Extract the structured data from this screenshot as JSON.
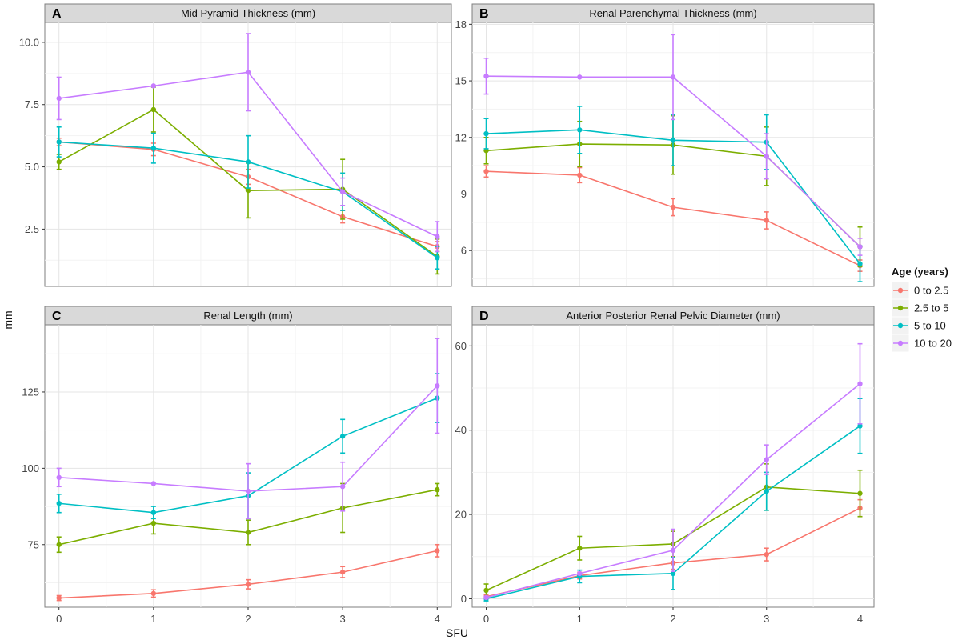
{
  "figure": {
    "xlabel": "SFU",
    "ylabel": "mm"
  },
  "legend": {
    "title": "Age (years)",
    "placement": "right",
    "items": [
      {
        "label": "0 to 2.5",
        "color": "#F8766D"
      },
      {
        "label": "2.5 to 5",
        "color": "#7CAE00"
      },
      {
        "label": "5 to 10",
        "color": "#00BFC4"
      },
      {
        "label": "10 to 20",
        "color": "#C77CFF"
      }
    ]
  },
  "chart_data": [
    {
      "panel_letter": "A",
      "title": "Mid Pyramid Thickness (mm)",
      "type": "line",
      "x": [
        0,
        1,
        2,
        3,
        4
      ],
      "xlim": [
        -0.15,
        4.15
      ],
      "ylim": [
        0.2,
        10.8
      ],
      "yticks": [
        2.5,
        5.0,
        7.5,
        10.0
      ],
      "ytick_labels": [
        "2.5",
        "5.0",
        "7.5",
        "10.0"
      ],
      "xtick_labels": [
        "0",
        "1",
        "2",
        "3",
        "4"
      ],
      "series": [
        {
          "name": "0 to 2.5",
          "values": [
            6.0,
            5.7,
            4.6,
            3.0,
            1.8
          ],
          "error": [
            0.15,
            0.25,
            0.3,
            0.25,
            0.2
          ]
        },
        {
          "name": "2.5 to 5",
          "values": [
            5.2,
            7.3,
            4.05,
            4.1,
            1.4
          ],
          "error": [
            0.3,
            0.9,
            1.1,
            1.2,
            0.7
          ]
        },
        {
          "name": "5 to 10",
          "values": [
            6.0,
            5.75,
            5.2,
            4.0,
            1.35
          ],
          "error": [
            0.6,
            0.6,
            1.05,
            0.75,
            0.45
          ]
        },
        {
          "name": "10 to 20",
          "values": [
            7.75,
            8.25,
            8.8,
            4.0,
            2.2
          ],
          "error": [
            0.85,
            0.0,
            1.55,
            0.55,
            0.6
          ]
        }
      ]
    },
    {
      "panel_letter": "B",
      "title": "Renal Parenchymal Thickness (mm)",
      "type": "line",
      "x": [
        0,
        1,
        2,
        3,
        4
      ],
      "xlim": [
        -0.15,
        4.15
      ],
      "ylim": [
        4.1,
        18.1
      ],
      "yticks": [
        6,
        9,
        12,
        15,
        18
      ],
      "ytick_labels": [
        "6",
        "9",
        "12",
        "15",
        "18"
      ],
      "xtick_labels": [
        "0",
        "1",
        "2",
        "3",
        "4"
      ],
      "series": [
        {
          "name": "0 to 2.5",
          "values": [
            10.2,
            10.0,
            8.3,
            7.6,
            5.2
          ],
          "error": [
            0.3,
            0.4,
            0.45,
            0.45,
            0.3
          ]
        },
        {
          "name": "2.5 to 5",
          "values": [
            11.3,
            11.65,
            11.6,
            11.0,
            6.2
          ],
          "error": [
            0.7,
            1.2,
            1.55,
            1.55,
            1.05
          ]
        },
        {
          "name": "5 to 10",
          "values": [
            12.2,
            12.4,
            11.85,
            11.75,
            5.3
          ],
          "error": [
            0.8,
            1.25,
            1.35,
            1.45,
            0.95
          ]
        },
        {
          "name": "10 to 20",
          "values": [
            15.25,
            15.2,
            15.2,
            11.0,
            6.2
          ],
          "error": [
            0.95,
            0.0,
            2.25,
            1.2,
            0.45
          ]
        }
      ]
    },
    {
      "panel_letter": "C",
      "title": "Renal Length (mm)",
      "type": "line",
      "x": [
        0,
        1,
        2,
        3,
        4
      ],
      "xlim": [
        -0.15,
        4.15
      ],
      "ylim": [
        54.5,
        147
      ],
      "yticks": [
        75,
        100,
        125
      ],
      "ytick_labels": [
        "75",
        "100",
        "125"
      ],
      "xtick_labels": [
        "0",
        "1",
        "2",
        "3",
        "4"
      ],
      "series": [
        {
          "name": "0 to 2.5",
          "values": [
            57.5,
            59.0,
            62.0,
            66.0,
            73.0
          ],
          "error": [
            0.8,
            1.2,
            1.5,
            1.8,
            2.0
          ]
        },
        {
          "name": "2.5 to 5",
          "values": [
            75.0,
            82.0,
            79.0,
            87.0,
            93.0
          ],
          "error": [
            2.5,
            3.5,
            4.0,
            8.0,
            2.0
          ]
        },
        {
          "name": "5 to 10",
          "values": [
            88.5,
            85.5,
            91.0,
            110.5,
            123.0
          ],
          "error": [
            3.0,
            2.0,
            7.5,
            5.5,
            8.0
          ]
        },
        {
          "name": "10 to 20",
          "values": [
            97.0,
            95.0,
            92.5,
            94.0,
            127.0
          ],
          "error": [
            3.0,
            0.0,
            9.0,
            8.0,
            15.5
          ]
        }
      ]
    },
    {
      "panel_letter": "D",
      "title": "Anterior Posterior Renal Pelvic Diameter (mm)",
      "type": "line",
      "x": [
        0,
        1,
        2,
        3,
        4
      ],
      "xlim": [
        -0.15,
        4.15
      ],
      "ylim": [
        -2,
        65
      ],
      "yticks": [
        0,
        20,
        40,
        60
      ],
      "ytick_labels": [
        "0",
        "20",
        "40",
        "60"
      ],
      "xtick_labels": [
        "0",
        "1",
        "2",
        "3",
        "4"
      ],
      "series": [
        {
          "name": "0 to 2.5",
          "values": [
            0.5,
            5.5,
            8.5,
            10.5,
            21.5
          ],
          "error": [
            0.4,
            0.8,
            1.5,
            1.5,
            2.0
          ]
        },
        {
          "name": "2.5 to 5",
          "values": [
            2.0,
            12.0,
            13.0,
            26.5,
            25.0
          ],
          "error": [
            1.5,
            2.8,
            3.0,
            5.5,
            5.5
          ]
        },
        {
          "name": "5 to 10",
          "values": [
            0.0,
            5.3,
            6.0,
            25.5,
            41.0
          ],
          "error": [
            0.5,
            1.5,
            3.8,
            4.5,
            6.5
          ]
        },
        {
          "name": "10 to 20",
          "values": [
            0.3,
            6.0,
            11.5,
            33.0,
            51.0
          ],
          "error": [
            0.3,
            0.0,
            5.0,
            3.5,
            9.5
          ]
        }
      ]
    }
  ]
}
